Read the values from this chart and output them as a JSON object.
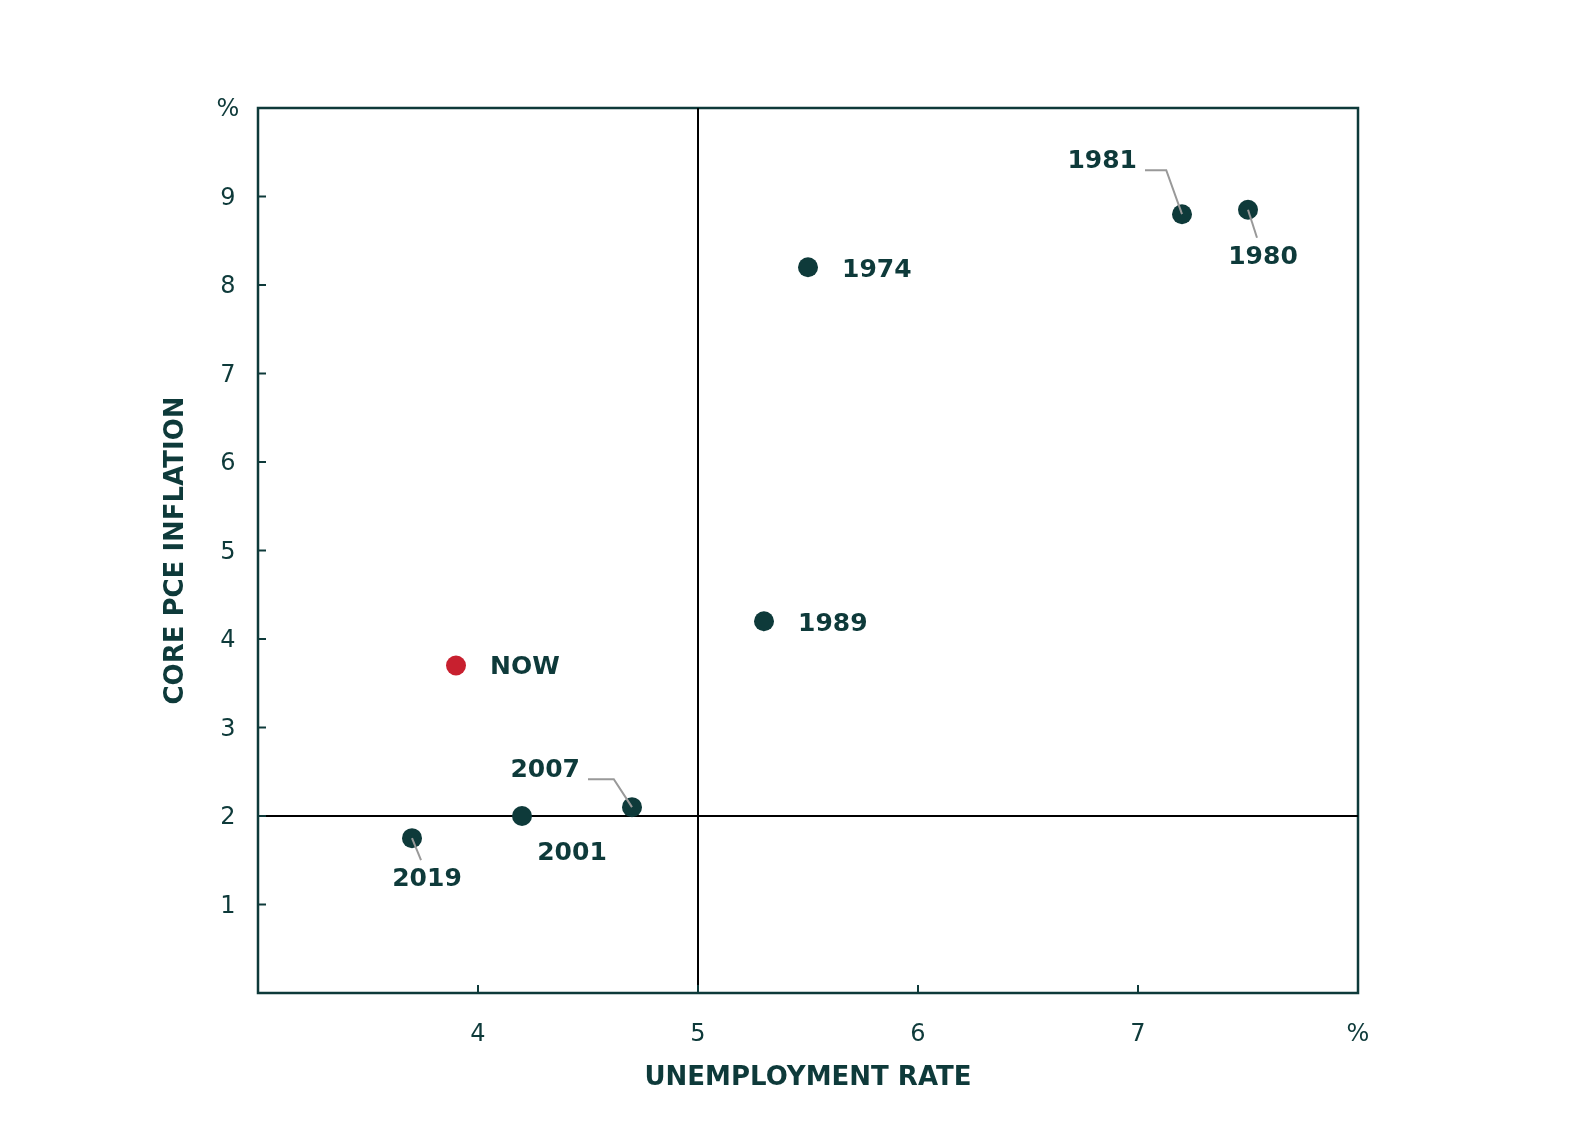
{
  "chart_data": {
    "type": "scatter",
    "xlabel": "UNEMPLOYMENT RATE",
    "ylabel": "CORE PCE INFLATION",
    "xlim": [
      3,
      8
    ],
    "xticks": [
      4,
      5,
      6,
      7,
      {
        "value": 8,
        "label": "%"
      }
    ],
    "ylim": [
      0,
      10
    ],
    "yticks": [
      1,
      2,
      3,
      4,
      5,
      6,
      7,
      8,
      9,
      {
        "value": 10,
        "label": "%"
      }
    ],
    "grid": false,
    "marker": "circle",
    "series": [
      {
        "color": "#0e3a3a",
        "x": [
          3.7,
          4.2,
          4.7,
          5.3,
          5.5,
          7.2,
          7.5
        ],
        "values": [
          1.75,
          2.0,
          2.1,
          4.2,
          8.2,
          8.8,
          8.85
        ]
      },
      {
        "color": "#c8202f",
        "x": [
          3.9
        ],
        "values": [
          3.7
        ]
      }
    ],
    "ref_lines": [
      {
        "axis": "x",
        "value": 5,
        "color": "#000000"
      },
      {
        "axis": "y",
        "value": 2,
        "color": "#000000"
      }
    ],
    "annotations": [
      {
        "text": "2019",
        "x": 3.7,
        "y": 1.75
      },
      {
        "text": "2001",
        "x": 4.2,
        "y": 2.0
      },
      {
        "text": "2007",
        "x": 4.7,
        "y": 2.1
      },
      {
        "text": "1989",
        "x": 5.3,
        "y": 4.2
      },
      {
        "text": "1974",
        "x": 5.5,
        "y": 8.2
      },
      {
        "text": "1981",
        "x": 7.2,
        "y": 8.8
      },
      {
        "text": "1980",
        "x": 7.5,
        "y": 8.85
      },
      {
        "text": "NOW",
        "x": 3.9,
        "y": 3.7
      }
    ]
  }
}
